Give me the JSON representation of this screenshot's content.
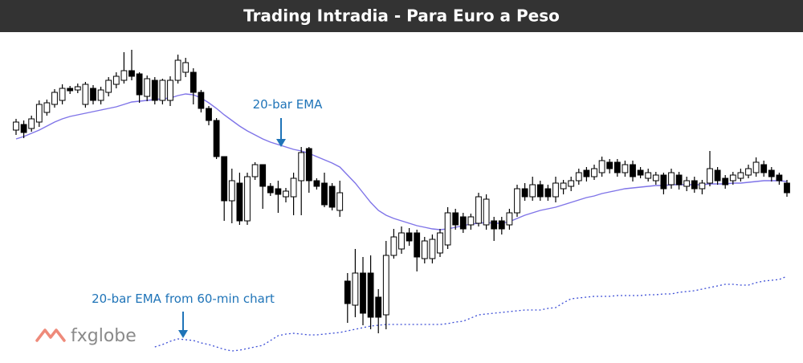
{
  "brand": "fxglobe",
  "chart_data": {
    "type": "candlestick",
    "title": "Trading Intradia - Para Euro a Peso",
    "up_color": "#ffffff",
    "down_color": "#000000",
    "ylim": [
      0,
      412
    ],
    "open": [
      290,
      297,
      292,
      300,
      312,
      322,
      327,
      342,
      340,
      322,
      342,
      327,
      337,
      347,
      352,
      364,
      360,
      332,
      352,
      327,
      327,
      352,
      362,
      362,
      337,
      317,
      302,
      257,
      202,
      224,
      177,
      232,
      247,
      220,
      217,
      207,
      207,
      227,
      267,
      227,
      224,
      220,
      190,
      102,
      72,
      112,
      112,
      82,
      60,
      134,
      142,
      162,
      162,
      130,
      130,
      137,
      147,
      187,
      182,
      172,
      174,
      172,
      177,
      177,
      172,
      187,
      217,
      207,
      222,
      217,
      207,
      217,
      220,
      227,
      240,
      232,
      237,
      250,
      250,
      237,
      247,
      240,
      230,
      227,
      234,
      222,
      234,
      220,
      227,
      217,
      224,
      240,
      230,
      227,
      230,
      234,
      237,
      247,
      240,
      234,
      224
    ],
    "high": [
      304,
      302,
      308,
      327,
      328,
      341,
      347,
      345,
      348,
      350,
      346,
      344,
      356,
      362,
      387,
      390,
      362,
      358,
      356,
      354,
      357,
      384,
      380,
      367,
      340,
      320,
      305,
      257,
      242,
      237,
      237,
      250,
      247,
      224,
      227,
      218,
      237,
      269,
      269,
      230,
      237,
      224,
      227,
      112,
      142,
      132,
      134,
      92,
      152,
      167,
      170,
      168,
      166,
      157,
      160,
      167,
      194,
      192,
      187,
      186,
      212,
      210,
      182,
      182,
      192,
      222,
      224,
      232,
      227,
      222,
      232,
      228,
      232,
      242,
      244,
      247,
      257,
      254,
      254,
      252,
      252,
      244,
      242,
      238,
      237,
      242,
      238,
      232,
      232,
      228,
      264,
      244,
      234,
      238,
      242,
      247,
      256,
      252,
      244,
      237,
      228
    ],
    "low": [
      284,
      280,
      288,
      294,
      308,
      318,
      322,
      335,
      336,
      318,
      322,
      322,
      332,
      342,
      348,
      352,
      324,
      326,
      322,
      322,
      320,
      348,
      356,
      322,
      312,
      296,
      254,
      177,
      174,
      172,
      172,
      228,
      192,
      208,
      187,
      200,
      184,
      184,
      212,
      216,
      194,
      190,
      182,
      50,
      57,
      47,
      42,
      37,
      42,
      130,
      136,
      146,
      114,
      124,
      124,
      132,
      142,
      166,
      162,
      166,
      170,
      166,
      152,
      160,
      166,
      182,
      202,
      202,
      202,
      202,
      200,
      210,
      214,
      222,
      226,
      228,
      232,
      236,
      232,
      232,
      226,
      230,
      226,
      222,
      210,
      217,
      216,
      214,
      212,
      210,
      220,
      222,
      217,
      222,
      226,
      230,
      232,
      232,
      226,
      222,
      207
    ],
    "close": [
      300,
      287,
      304,
      322,
      324,
      337,
      342,
      339,
      344,
      347,
      327,
      340,
      352,
      357,
      364,
      357,
      334,
      354,
      327,
      352,
      352,
      377,
      374,
      337,
      317,
      302,
      257,
      202,
      227,
      177,
      232,
      247,
      220,
      212,
      210,
      214,
      230,
      262,
      227,
      220,
      197,
      194,
      212,
      74,
      112,
      62,
      57,
      57,
      134,
      157,
      162,
      152,
      132,
      152,
      154,
      162,
      187,
      172,
      167,
      182,
      207,
      204,
      167,
      167,
      187,
      217,
      207,
      222,
      207,
      207,
      224,
      224,
      227,
      237,
      232,
      242,
      252,
      242,
      237,
      247,
      232,
      234,
      237,
      234,
      217,
      237,
      222,
      227,
      217,
      224,
      242,
      227,
      222,
      234,
      237,
      242,
      250,
      237,
      232,
      227,
      212
    ],
    "series": [
      {
        "name": "20-bar EMA",
        "color": "#7f74e8",
        "style": "solid",
        "values": [
          279,
          282,
          286,
          290,
          295,
          300,
          304,
          307,
          309,
          311,
          313,
          315,
          317,
          319,
          322,
          325,
          326,
          327,
          328,
          329,
          330,
          333,
          335,
          334,
          330,
          324,
          317,
          309,
          302,
          295,
          289,
          284,
          279,
          275,
          272,
          269,
          266,
          264,
          261,
          257,
          253,
          249,
          244,
          234,
          224,
          212,
          200,
          190,
          184,
          180,
          177,
          174,
          171,
          169,
          167,
          166,
          167,
          169,
          171,
          173,
          174,
          175,
          174,
          174,
          176,
          180,
          184,
          187,
          190,
          192,
          194,
          197,
          200,
          203,
          206,
          208,
          211,
          213,
          215,
          217,
          218,
          219,
          220,
          221,
          221,
          222,
          222,
          222,
          222,
          222,
          223,
          223,
          223,
          224,
          224,
          225,
          226,
          227,
          227,
          227,
          226
        ]
      },
      {
        "name": "20-bar EMA from 60-min chart",
        "color": "#3d4fd6",
        "style": "dotted",
        "values": [
          null,
          null,
          null,
          null,
          null,
          null,
          null,
          null,
          null,
          null,
          null,
          null,
          null,
          null,
          null,
          null,
          null,
          null,
          20,
          23,
          27,
          30,
          29,
          28,
          25,
          23,
          20,
          17,
          15,
          16,
          18,
          20,
          22,
          28,
          34,
          36,
          37,
          36,
          35,
          35,
          36,
          37,
          38,
          40,
          42,
          44,
          46,
          47,
          48,
          48,
          48,
          48,
          48,
          48,
          48,
          48,
          49,
          51,
          52,
          56,
          60,
          61,
          62,
          63,
          64,
          65,
          66,
          66,
          66,
          68,
          69,
          75,
          80,
          81,
          82,
          83,
          83,
          83,
          84,
          84,
          84,
          84,
          85,
          85,
          86,
          86,
          88,
          89,
          90,
          92,
          94,
          96,
          98,
          98,
          97,
          97,
          100,
          102,
          103,
          104,
          108
        ]
      }
    ]
  }
}
